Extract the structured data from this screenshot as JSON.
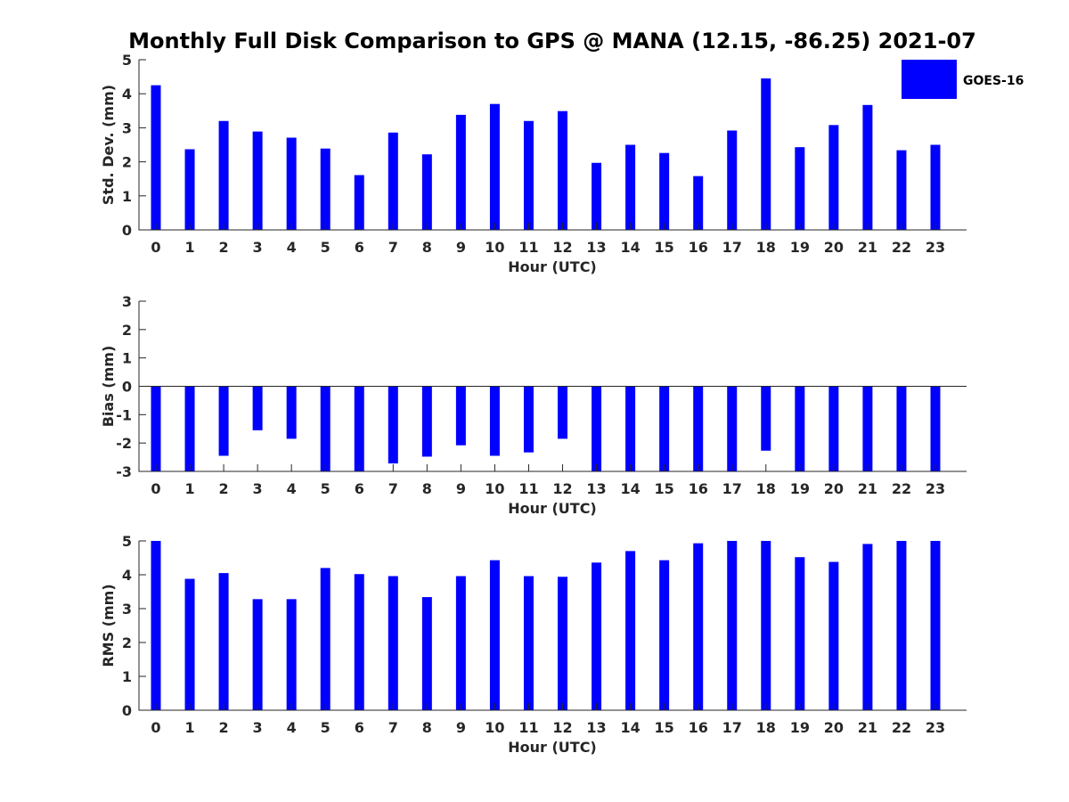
{
  "figure": {
    "title": "Monthly Full Disk Comparison to GPS @ MANA (12.15, -86.25) 2021-07",
    "legend": {
      "label": "GOES-16",
      "color": "#0000ff"
    }
  },
  "chart_data": [
    {
      "type": "bar",
      "id": "std",
      "ylabel": "Std. Dev. (mm)",
      "xlabel": "Hour (UTC)",
      "ylim": [
        0,
        5
      ],
      "yticks": [
        "0",
        "1",
        "2",
        "3",
        "4",
        "5"
      ],
      "categories": [
        "0",
        "1",
        "2",
        "3",
        "4",
        "5",
        "6",
        "7",
        "8",
        "9",
        "10",
        "11",
        "12",
        "13",
        "14",
        "15",
        "16",
        "17",
        "18",
        "19",
        "20",
        "21",
        "22",
        "23"
      ],
      "series": [
        {
          "name": "GOES-16",
          "color": "#0000ff",
          "values": [
            4.25,
            2.37,
            3.2,
            2.89,
            2.71,
            2.39,
            1.61,
            2.86,
            2.22,
            3.38,
            3.7,
            3.2,
            3.49,
            1.97,
            2.5,
            2.26,
            1.58,
            2.92,
            4.45,
            2.43,
            3.08,
            3.67,
            2.34,
            2.5
          ]
        }
      ],
      "grid": false,
      "legend": "top-right"
    },
    {
      "type": "bar",
      "id": "bias",
      "ylabel": "Bias (mm)",
      "xlabel": "Hour (UTC)",
      "ylim": [
        -3,
        3
      ],
      "yticks": [
        "-3",
        "-2",
        "-1",
        "0",
        "1",
        "2",
        "3"
      ],
      "categories": [
        "0",
        "1",
        "2",
        "3",
        "4",
        "5",
        "6",
        "7",
        "8",
        "9",
        "10",
        "11",
        "12",
        "13",
        "14",
        "15",
        "16",
        "17",
        "18",
        "19",
        "20",
        "21",
        "22",
        "23"
      ],
      "series": [
        {
          "name": "GOES-16",
          "color": "#0000ff",
          "values": [
            -3,
            -3,
            -2.45,
            -1.55,
            -1.85,
            -3,
            -3,
            -2.72,
            -2.48,
            -2.08,
            -2.45,
            -2.33,
            -1.85,
            -3,
            -3,
            -3,
            -3,
            -3,
            -2.27,
            -3,
            -3,
            -3,
            -3,
            -3
          ]
        }
      ],
      "grid": false
    },
    {
      "type": "bar",
      "id": "rms",
      "ylabel": "RMS (mm)",
      "xlabel": "Hour (UTC)",
      "ylim": [
        0,
        5
      ],
      "yticks": [
        "0",
        "1",
        "2",
        "3",
        "4",
        "5"
      ],
      "categories": [
        "0",
        "1",
        "2",
        "3",
        "4",
        "5",
        "6",
        "7",
        "8",
        "9",
        "10",
        "11",
        "12",
        "13",
        "14",
        "15",
        "16",
        "17",
        "18",
        "19",
        "20",
        "21",
        "22",
        "23"
      ],
      "series": [
        {
          "name": "GOES-16",
          "color": "#0000ff",
          "values": [
            5,
            3.88,
            4.05,
            3.28,
            3.28,
            4.2,
            4.02,
            3.96,
            3.34,
            3.96,
            4.43,
            3.96,
            3.94,
            4.36,
            4.7,
            4.43,
            4.93,
            5,
            5,
            4.52,
            4.38,
            4.91,
            5,
            5
          ]
        }
      ],
      "grid": false
    }
  ]
}
